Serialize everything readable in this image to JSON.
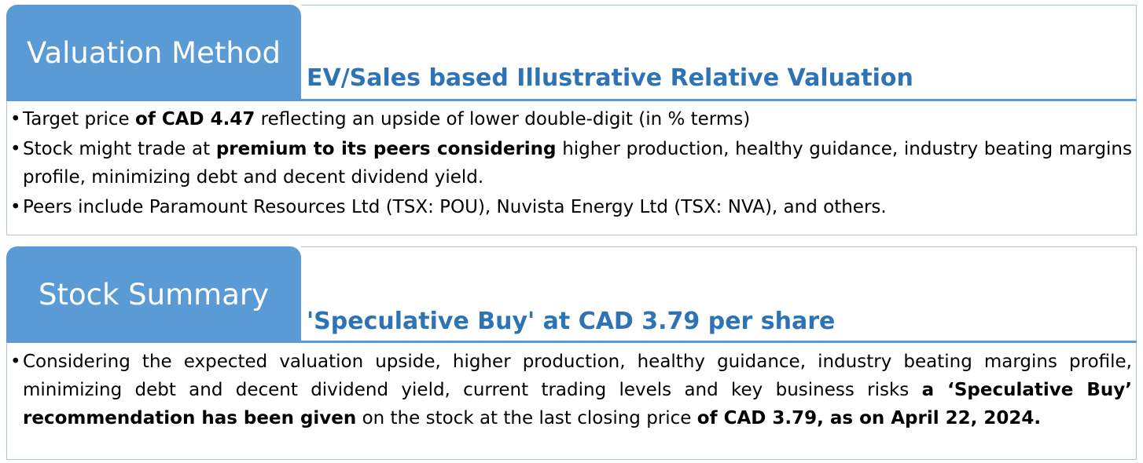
{
  "valuation": {
    "tab_label": "Valuation Method",
    "heading": "EV/Sales based Illustrative Relative Valuation",
    "bullets": [
      [
        {
          "text": "Target price ",
          "bold": false
        },
        {
          "text": "of CAD 4.47",
          "bold": true
        },
        {
          "text": " reflecting an upside of lower double-digit (in % terms)",
          "bold": false
        }
      ],
      [
        {
          "text": "Stock might trade at ",
          "bold": false
        },
        {
          "text": "premium to its peers considering",
          "bold": true
        },
        {
          "text": " higher production, healthy guidance, industry beating margins profile, minimizing debt and decent dividend yield.",
          "bold": false
        }
      ],
      [
        {
          "text": "Peers include Paramount Resources Ltd (TSX: POU), Nuvista Energy Ltd (TSX: NVA), and others.",
          "bold": false
        }
      ]
    ]
  },
  "summary": {
    "tab_label": "Stock Summary",
    "heading": "'Speculative Buy' at CAD 3.79 per share",
    "bullets": [
      [
        {
          "text": "Considering the expected valuation upside, higher production, healthy guidance, industry beating margins profile, minimizing debt and decent dividend yield, current trading levels and key business risks ",
          "bold": false
        },
        {
          "text": "a ‘Speculative Buy’ recommendation has been given",
          "bold": true
        },
        {
          "text": " on the stock at the last closing price ",
          "bold": false
        },
        {
          "text": "of CAD 3.79, as on April 22, 2024.",
          "bold": true
        }
      ]
    ]
  },
  "bullet_glyph": "•",
  "colors": {
    "tab_bg": "#5b9bd5",
    "heading": "#2e74b5",
    "frame": "#a9c4e4"
  }
}
